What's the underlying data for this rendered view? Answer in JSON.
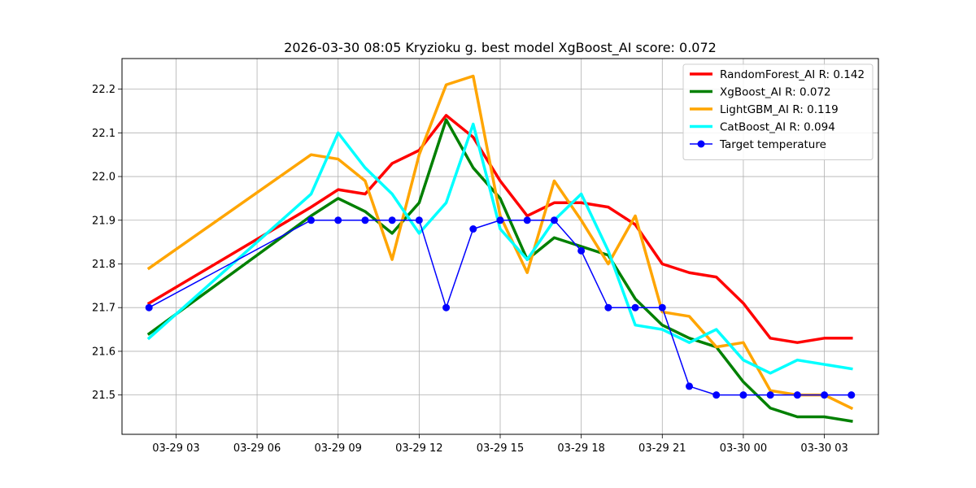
{
  "chart_data": {
    "type": "line",
    "title": "2026-03-30 08:05 Kryzioku g. best model XgBoost_AI score: 0.072",
    "xlabel": "",
    "ylabel": "",
    "x_unit": "hour",
    "x": [
      "2026-03-29 02:00",
      "2026-03-29 08:00",
      "2026-03-29 09:00",
      "2026-03-29 10:00",
      "2026-03-29 11:00",
      "2026-03-29 12:00",
      "2026-03-29 13:00",
      "2026-03-29 14:00",
      "2026-03-29 15:00",
      "2026-03-29 16:00",
      "2026-03-29 17:00",
      "2026-03-29 18:00",
      "2026-03-29 19:00",
      "2026-03-29 20:00",
      "2026-03-29 21:00",
      "2026-03-29 22:00",
      "2026-03-29 23:00",
      "2026-03-30 00:00",
      "2026-03-30 01:00",
      "2026-03-30 02:00",
      "2026-03-30 03:00",
      "2026-03-30 04:00"
    ],
    "x_ticks": [
      {
        "value": "2026-03-29 03:00",
        "label": "03-29 03"
      },
      {
        "value": "2026-03-29 06:00",
        "label": "03-29 06"
      },
      {
        "value": "2026-03-29 09:00",
        "label": "03-29 09"
      },
      {
        "value": "2026-03-29 12:00",
        "label": "03-29 12"
      },
      {
        "value": "2026-03-29 15:00",
        "label": "03-29 15"
      },
      {
        "value": "2026-03-29 18:00",
        "label": "03-29 18"
      },
      {
        "value": "2026-03-29 21:00",
        "label": "03-29 21"
      },
      {
        "value": "2026-03-30 00:00",
        "label": "03-30 00"
      },
      {
        "value": "2026-03-30 03:00",
        "label": "03-30 03"
      }
    ],
    "xlim": [
      "2026-03-29 01:00",
      "2026-03-30 05:00"
    ],
    "ylim": [
      21.41,
      22.27
    ],
    "y_ticks": [
      21.5,
      21.6,
      21.7,
      21.8,
      21.9,
      22.0,
      22.1,
      22.2
    ],
    "grid": true,
    "legend_position": "top-right",
    "series": [
      {
        "name": "RandomForest_AI R: 0.142",
        "color": "#ff0000",
        "marker": false,
        "x": [
          "2026-03-29 02:00",
          "2026-03-29 08:00",
          "2026-03-29 09:00",
          "2026-03-29 10:00",
          "2026-03-29 11:00",
          "2026-03-29 12:00",
          "2026-03-29 13:00",
          "2026-03-29 14:00",
          "2026-03-29 15:00",
          "2026-03-29 16:00",
          "2026-03-29 17:00",
          "2026-03-29 18:00",
          "2026-03-29 19:00",
          "2026-03-29 20:00",
          "2026-03-29 21:00",
          "2026-03-29 22:00",
          "2026-03-29 23:00",
          "2026-03-30 00:00",
          "2026-03-30 01:00",
          "2026-03-30 02:00",
          "2026-03-30 03:00",
          "2026-03-30 04:00"
        ],
        "values": [
          21.71,
          21.93,
          21.97,
          21.96,
          22.03,
          22.06,
          22.14,
          22.09,
          21.99,
          21.91,
          21.94,
          21.94,
          21.93,
          21.89,
          21.8,
          21.78,
          21.77,
          21.71,
          21.63,
          21.62,
          21.63,
          21.63
        ]
      },
      {
        "name": "XgBoost_AI R: 0.072",
        "color": "#008000",
        "marker": false,
        "x": [
          "2026-03-29 02:00",
          "2026-03-29 08:00",
          "2026-03-29 09:00",
          "2026-03-29 10:00",
          "2026-03-29 11:00",
          "2026-03-29 12:00",
          "2026-03-29 13:00",
          "2026-03-29 14:00",
          "2026-03-29 15:00",
          "2026-03-29 16:00",
          "2026-03-29 17:00",
          "2026-03-29 18:00",
          "2026-03-29 19:00",
          "2026-03-29 20:00",
          "2026-03-29 21:00",
          "2026-03-29 22:00",
          "2026-03-29 23:00",
          "2026-03-30 00:00",
          "2026-03-30 01:00",
          "2026-03-30 02:00",
          "2026-03-30 03:00",
          "2026-03-30 04:00"
        ],
        "values": [
          21.64,
          21.91,
          21.95,
          21.92,
          21.87,
          21.94,
          22.13,
          22.02,
          21.95,
          21.81,
          21.86,
          21.84,
          21.82,
          21.72,
          21.66,
          21.63,
          21.61,
          21.53,
          21.47,
          21.45,
          21.45,
          21.44
        ]
      },
      {
        "name": "LightGBM_AI R: 0.119",
        "color": "#ffa500",
        "marker": false,
        "x": [
          "2026-03-29 02:00",
          "2026-03-29 08:00",
          "2026-03-29 09:00",
          "2026-03-29 10:00",
          "2026-03-29 11:00",
          "2026-03-29 12:00",
          "2026-03-29 13:00",
          "2026-03-29 14:00",
          "2026-03-29 15:00",
          "2026-03-29 16:00",
          "2026-03-29 17:00",
          "2026-03-29 18:00",
          "2026-03-29 19:00",
          "2026-03-29 20:00",
          "2026-03-29 21:00",
          "2026-03-29 22:00",
          "2026-03-29 23:00",
          "2026-03-30 00:00",
          "2026-03-30 01:00",
          "2026-03-30 02:00",
          "2026-03-30 03:00",
          "2026-03-30 04:00"
        ],
        "values": [
          21.79,
          22.05,
          22.04,
          21.99,
          21.81,
          22.05,
          22.21,
          22.23,
          21.91,
          21.78,
          21.99,
          21.9,
          21.8,
          21.91,
          21.69,
          21.68,
          21.61,
          21.62,
          21.51,
          21.5,
          21.5,
          21.47
        ]
      },
      {
        "name": "CatBoost_AI R: 0.094",
        "color": "#00ffff",
        "marker": false,
        "x": [
          "2026-03-29 02:00",
          "2026-03-29 08:00",
          "2026-03-29 09:00",
          "2026-03-29 10:00",
          "2026-03-29 11:00",
          "2026-03-29 12:00",
          "2026-03-29 13:00",
          "2026-03-29 14:00",
          "2026-03-29 15:00",
          "2026-03-29 16:00",
          "2026-03-29 17:00",
          "2026-03-29 18:00",
          "2026-03-29 19:00",
          "2026-03-29 20:00",
          "2026-03-29 21:00",
          "2026-03-29 22:00",
          "2026-03-29 23:00",
          "2026-03-30 00:00",
          "2026-03-30 01:00",
          "2026-03-30 02:00",
          "2026-03-30 03:00",
          "2026-03-30 04:00"
        ],
        "values": [
          21.63,
          21.96,
          22.1,
          22.02,
          21.96,
          21.87,
          21.94,
          22.12,
          21.88,
          21.81,
          21.9,
          21.96,
          21.83,
          21.66,
          21.65,
          21.62,
          21.65,
          21.58,
          21.55,
          21.58,
          21.57,
          21.56
        ]
      },
      {
        "name": "Target temperature",
        "color": "#0000ff",
        "marker": true,
        "x": [
          "2026-03-29 02:00",
          "2026-03-29 08:00",
          "2026-03-29 09:00",
          "2026-03-29 10:00",
          "2026-03-29 11:00",
          "2026-03-29 12:00",
          "2026-03-29 13:00",
          "2026-03-29 14:00",
          "2026-03-29 15:00",
          "2026-03-29 16:00",
          "2026-03-29 17:00",
          "2026-03-29 18:00",
          "2026-03-29 19:00",
          "2026-03-29 20:00",
          "2026-03-29 21:00",
          "2026-03-29 22:00",
          "2026-03-29 23:00",
          "2026-03-30 00:00",
          "2026-03-30 01:00",
          "2026-03-30 02:00",
          "2026-03-30 03:00",
          "2026-03-30 04:00"
        ],
        "values": [
          21.7,
          21.9,
          21.9,
          21.9,
          21.9,
          21.9,
          21.7,
          21.88,
          21.9,
          21.9,
          21.9,
          21.83,
          21.7,
          21.7,
          21.7,
          21.52,
          21.5,
          21.5,
          21.5,
          21.5,
          21.5,
          21.5
        ]
      }
    ]
  }
}
